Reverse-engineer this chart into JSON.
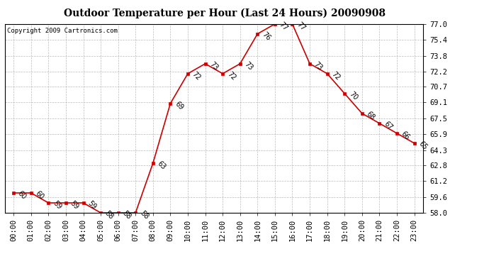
{
  "hours": [
    "00:00",
    "01:00",
    "02:00",
    "03:00",
    "04:00",
    "05:00",
    "06:00",
    "07:00",
    "08:00",
    "09:00",
    "10:00",
    "11:00",
    "12:00",
    "13:00",
    "14:00",
    "15:00",
    "16:00",
    "17:00",
    "18:00",
    "19:00",
    "20:00",
    "21:00",
    "22:00",
    "23:00"
  ],
  "temps": [
    60,
    60,
    59,
    59,
    59,
    58,
    58,
    58,
    63,
    69,
    72,
    73,
    72,
    73,
    76,
    77,
    77,
    73,
    72,
    70,
    68,
    67,
    66,
    65
  ],
  "title": "Outdoor Temperature per Hour (Last 24 Hours) 20090908",
  "copyright": "Copyright 2009 Cartronics.com",
  "line_color": "#cc0000",
  "marker_color": "#cc0000",
  "bg_color": "#ffffff",
  "grid_color": "#aaaaaa",
  "ylim_min": 58.0,
  "ylim_max": 77.0,
  "yticks": [
    58.0,
    59.6,
    61.2,
    62.8,
    64.3,
    65.9,
    67.5,
    69.1,
    70.7,
    72.2,
    73.8,
    75.4,
    77.0
  ]
}
